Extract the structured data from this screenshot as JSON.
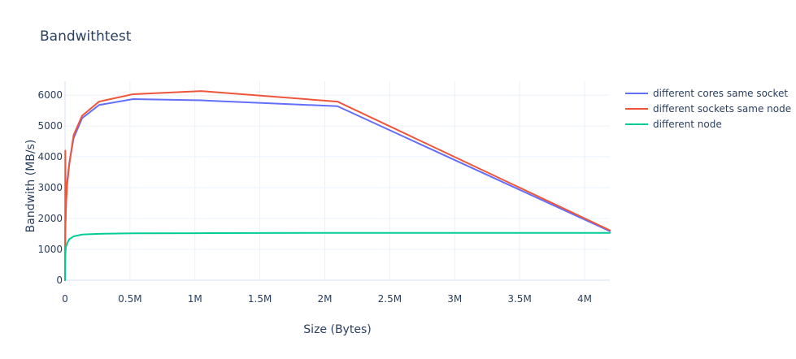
{
  "chart_data": {
    "type": "line",
    "title": "Bandwithtest",
    "xlabel": "Size (Bytes)",
    "ylabel": "Bandwith (MB/s)",
    "xlim": [
      0,
      4194304
    ],
    "ylim": [
      0,
      6450
    ],
    "x_ticks": [
      0,
      500000,
      1000000,
      1500000,
      2000000,
      2500000,
      3000000,
      3500000,
      4000000
    ],
    "x_tick_labels": [
      "0",
      "0.5M",
      "1M",
      "1.5M",
      "2M",
      "2.5M",
      "3M",
      "3.5M",
      "4M"
    ],
    "y_ticks": [
      0,
      1000,
      2000,
      3000,
      4000,
      5000,
      6000
    ],
    "y_tick_labels": [
      "0",
      "1000",
      "2000",
      "3000",
      "4000",
      "5000",
      "6000"
    ],
    "grid": true,
    "legend_position": "top-right",
    "series": [
      {
        "name": "different cores same socket",
        "color": "#636efa",
        "x": [
          1,
          2,
          4,
          8,
          16,
          32,
          64,
          128,
          256,
          512,
          1024,
          2048,
          4096,
          8192,
          16384,
          32768,
          65536,
          131072,
          262144,
          524288,
          1048576,
          2097152,
          4194304
        ],
        "y": [
          1,
          3,
          5,
          10,
          20,
          40,
          80,
          160,
          310,
          600,
          1000,
          1500,
          2000,
          2600,
          3200,
          3800,
          4600,
          5250,
          5680,
          5870,
          5830,
          5640,
          1590
        ]
      },
      {
        "name": "different sockets same node",
        "color": "#ef553b",
        "x": [
          1,
          2,
          4,
          8,
          16,
          32,
          64,
          128,
          256,
          512,
          1024,
          2048,
          4096,
          8192,
          16384,
          32768,
          65536,
          131072,
          262144,
          524288,
          1048576,
          2097152,
          4194304
        ],
        "y": [
          1,
          3,
          5,
          10,
          20,
          40,
          80,
          160,
          320,
          640,
          1100,
          4200,
          1900,
          2500,
          3100,
          3750,
          4700,
          5330,
          5790,
          6030,
          6130,
          5790,
          1620
        ]
      },
      {
        "name": "different node",
        "color": "#00cc96",
        "x": [
          1,
          2,
          4,
          8,
          16,
          32,
          64,
          128,
          256,
          512,
          1024,
          2048,
          4096,
          8192,
          16384,
          32768,
          65536,
          131072,
          262144,
          524288,
          1048576,
          2097152,
          4194304
        ],
        "y": [
          1,
          2,
          3,
          5,
          10,
          20,
          40,
          80,
          160,
          300,
          500,
          750,
          950,
          1100,
          1200,
          1330,
          1420,
          1480,
          1505,
          1520,
          1525,
          1535,
          1535
        ]
      }
    ]
  }
}
